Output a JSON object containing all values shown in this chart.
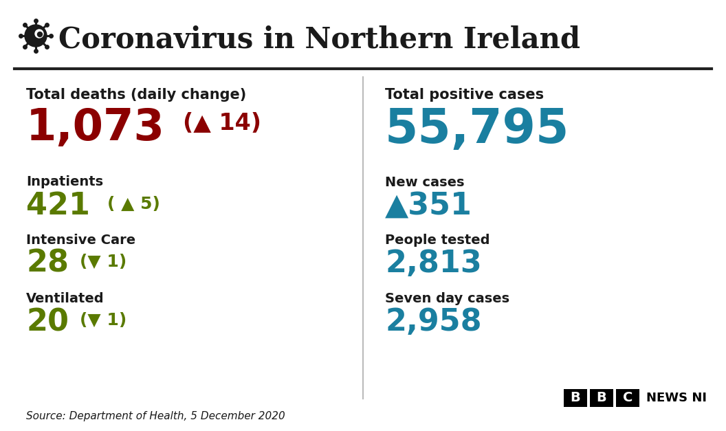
{
  "title": "Coronavirus in Northern Ireland",
  "bg_color": "#ffffff",
  "title_color": "#1a1a1a",
  "divider_color": "#222222",
  "dark_text_color": "#1a1a1a",
  "red_color": "#8b0000",
  "green_color": "#5a7a00",
  "teal_color": "#1a7fa0",
  "source_text": "Source: Department of Health, 5 December 2020",
  "left_panel": {
    "total_deaths_label": "Total deaths (daily change)",
    "total_deaths_value": "1,073",
    "total_deaths_change": "(▲ 14)",
    "inpatients_label": "Inpatients",
    "inpatients_value": "421",
    "inpatients_change": "( ▲ 5)",
    "ic_label": "Intensive Care",
    "ic_value": "28",
    "ic_change": "(▼ 1)",
    "ventilated_label": "Ventilated",
    "ventilated_value": "20",
    "ventilated_change": "(▼ 1)"
  },
  "right_panel": {
    "total_positive_label": "Total positive cases",
    "total_positive_value": "55,795",
    "new_cases_label": "New cases",
    "new_cases_value": "▲351",
    "people_tested_label": "People tested",
    "people_tested_value": "2,813",
    "seven_day_label": "Seven day cases",
    "seven_day_value": "2,958"
  }
}
